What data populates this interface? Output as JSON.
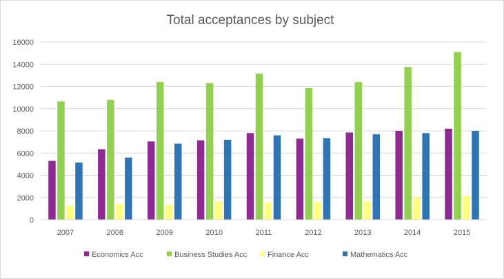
{
  "chart_data": {
    "type": "bar",
    "title": "Total acceptances by subject",
    "xlabel": "",
    "ylabel": "",
    "ylim": [
      0,
      16000
    ],
    "yticks": [
      0,
      2000,
      4000,
      6000,
      8000,
      10000,
      12000,
      14000,
      16000
    ],
    "grid": true,
    "legend_position": "bottom",
    "categories": [
      "2007",
      "2008",
      "2009",
      "2010",
      "2011",
      "2012",
      "2013",
      "2014",
      "2015"
    ],
    "series": [
      {
        "name": "Economics Acc",
        "color": "#8e2a91",
        "values": [
          5300,
          6350,
          7050,
          7150,
          7800,
          7300,
          7850,
          8000,
          8200
        ]
      },
      {
        "name": "Business Studies Acc",
        "color": "#92d050",
        "values": [
          10650,
          10800,
          12400,
          12300,
          13150,
          11850,
          12400,
          13750,
          15100
        ]
      },
      {
        "name": "Finance Acc",
        "color": "#ffff80",
        "values": [
          1250,
          1450,
          1350,
          1650,
          1550,
          1600,
          1650,
          2000,
          2150
        ]
      },
      {
        "name": "Mathematics Acc",
        "color": "#2e75b6",
        "values": [
          5150,
          5600,
          6850,
          7200,
          7600,
          7350,
          7700,
          7800,
          8000
        ]
      }
    ]
  }
}
